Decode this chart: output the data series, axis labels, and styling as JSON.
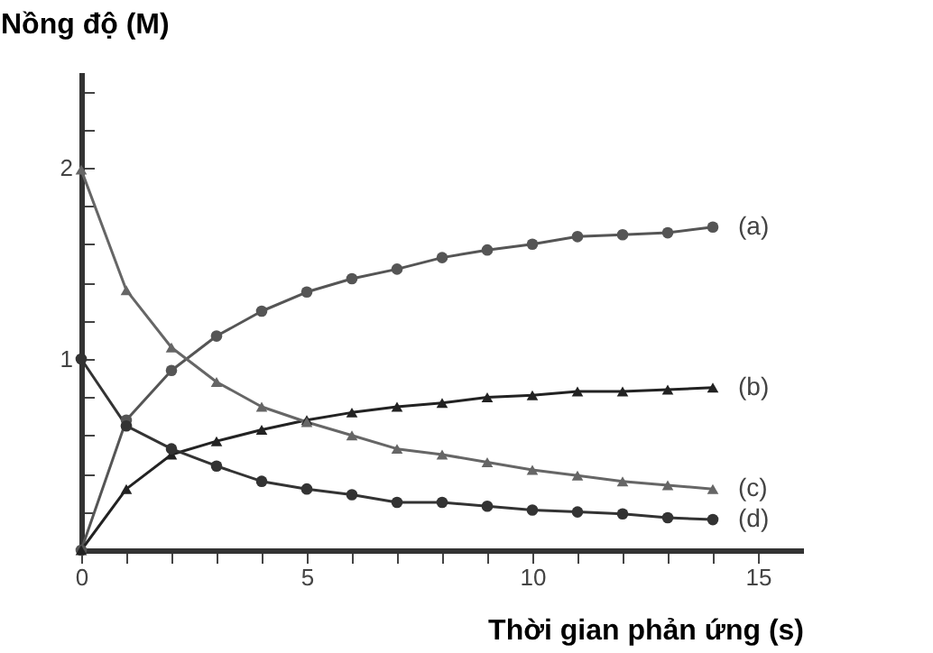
{
  "chart_data": {
    "type": "line",
    "xlabel": "Thời gian phản ứng (s)",
    "ylabel": "Nồng độ (M)",
    "x": [
      0,
      1,
      2,
      3,
      4,
      5,
      6,
      7,
      8,
      9,
      10,
      11,
      12,
      13,
      14
    ],
    "series": [
      {
        "name": "(a)",
        "color": "#555555",
        "marker": "circle",
        "values": [
          0,
          0.68,
          0.94,
          1.12,
          1.25,
          1.35,
          1.42,
          1.47,
          1.53,
          1.57,
          1.6,
          1.64,
          1.65,
          1.66,
          1.69
        ]
      },
      {
        "name": "(b)",
        "color": "#222222",
        "marker": "triangle",
        "values": [
          0,
          0.32,
          0.5,
          0.57,
          0.63,
          0.68,
          0.72,
          0.75,
          0.77,
          0.8,
          0.81,
          0.83,
          0.83,
          0.84,
          0.85
        ]
      },
      {
        "name": "(c)",
        "color": "#666666",
        "marker": "triangle",
        "values": [
          1.99,
          1.36,
          1.06,
          0.88,
          0.75,
          0.67,
          0.6,
          0.53,
          0.5,
          0.46,
          0.42,
          0.39,
          0.36,
          0.34,
          0.32
        ]
      },
      {
        "name": "(d)",
        "color": "#333333",
        "marker": "circle",
        "values": [
          1,
          0.65,
          0.53,
          0.44,
          0.36,
          0.32,
          0.29,
          0.25,
          0.25,
          0.23,
          0.21,
          0.2,
          0.19,
          0.17,
          0.16
        ]
      }
    ],
    "xlim": [
      0,
      16
    ],
    "ylim": [
      0,
      2.5
    ],
    "xticks": [
      0,
      {
        "value": 1,
        "label": null
      },
      {
        "value": 2,
        "label": null
      },
      {
        "value": 3,
        "label": null
      },
      {
        "value": 4,
        "label": null
      },
      5,
      {
        "value": 6,
        "label": null
      },
      {
        "value": 7,
        "label": null
      },
      {
        "value": 8,
        "label": null
      },
      {
        "value": 9,
        "label": null
      },
      10,
      {
        "value": 11,
        "label": null
      },
      {
        "value": 12,
        "label": null
      },
      {
        "value": 13,
        "label": null
      },
      {
        "value": 14,
        "label": null
      },
      15
    ],
    "yticks": [
      {
        "value": 0.2,
        "label": null
      },
      {
        "value": 0.4,
        "label": null
      },
      {
        "value": 0.6,
        "label": null
      },
      {
        "value": 0.8,
        "label": null
      },
      1,
      {
        "value": 1.2,
        "label": null
      },
      {
        "value": 1.4,
        "label": null
      },
      {
        "value": 1.6,
        "label": null
      },
      {
        "value": 1.8,
        "label": null
      },
      2,
      {
        "value": 2.2,
        "label": null
      },
      {
        "value": 2.4,
        "label": null
      }
    ],
    "grid": false,
    "legend": false
  }
}
